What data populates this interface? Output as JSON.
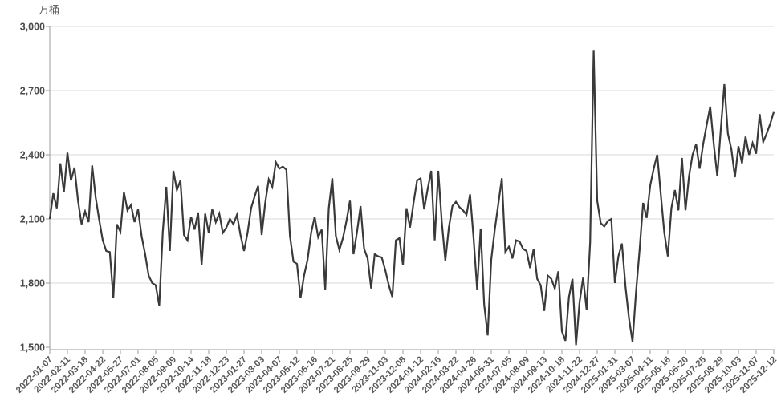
{
  "y_axis_title": "万桶",
  "colors": {
    "line": "#3a3a3a",
    "grid": "#d9d9d9",
    "axis": "#9b9b9b",
    "y_label": "#4a4a4a",
    "x_label": "#595959",
    "background": "#ffffff"
  },
  "chart_data": {
    "type": "line",
    "title": "",
    "xlabel": "",
    "ylabel": "万桶",
    "ylim": [
      1500,
      3000
    ],
    "grid": true,
    "legend_position": "none",
    "y_tick_values": [
      3000,
      2700,
      2400,
      2100,
      1800,
      1500
    ],
    "y_tick_labels": [
      "3,000",
      "2,700",
      "2,400",
      "2,100",
      "1,800",
      "1,500"
    ],
    "x_interval": "weekly",
    "x_tick_every": 5,
    "x_tick_labels": [
      "2022-01-07",
      "2022-02-11",
      "2022-03-18",
      "2022-04-22",
      "2022-05-27",
      "2022-07-01",
      "2022-08-05",
      "2022-09-09",
      "2022-10-14",
      "2022-11-18",
      "2022-12-23",
      "2023-01-27",
      "2023-03-03",
      "2023-04-07",
      "2023-05-12",
      "2023-06-16",
      "2023-07-21",
      "2023-08-25",
      "2023-09-29",
      "2023-11-03",
      "2023-12-08",
      "2024-01-12",
      "2024-02-16",
      "2024-03-22",
      "2024-04-26",
      "2024-05-31",
      "2024-07-05",
      "2024-08-09",
      "2024-09-13",
      "2024-10-18",
      "2024-11-22",
      "2024-12-27",
      "2025-01-31",
      "2025-03-07",
      "2025-04-11",
      "2025-05-16",
      "2025-06-20",
      "2025-07-25",
      "2025-08-29",
      "2025-10-03",
      "2025-11-07",
      "2025-12-12"
    ],
    "series": [
      {
        "name": "",
        "values": [
          2100,
          2220,
          2150,
          2360,
          2225,
          2410,
          2280,
          2340,
          2185,
          2075,
          2135,
          2085,
          2350,
          2200,
          2095,
          2000,
          1950,
          1945,
          1730,
          2075,
          2040,
          2225,
          2140,
          2165,
          2085,
          2145,
          2020,
          1935,
          1835,
          1800,
          1790,
          1695,
          2040,
          2250,
          1950,
          2325,
          2235,
          2280,
          2025,
          2000,
          2110,
          2050,
          2130,
          1885,
          2125,
          2035,
          2145,
          2085,
          2125,
          2035,
          2060,
          2100,
          2075,
          2120,
          2025,
          1950,
          2035,
          2150,
          2205,
          2255,
          2025,
          2175,
          2285,
          2250,
          2365,
          2335,
          2345,
          2330,
          2020,
          1900,
          1890,
          1730,
          1835,
          1910,
          2035,
          2110,
          2015,
          2050,
          1770,
          2150,
          2290,
          2020,
          1955,
          2010,
          2090,
          2185,
          1935,
          2040,
          2160,
          1960,
          1915,
          1775,
          1935,
          1925,
          1920,
          1860,
          1790,
          1735,
          2000,
          2010,
          1885,
          2150,
          2060,
          2175,
          2280,
          2290,
          2145,
          2240,
          2325,
          2000,
          2325,
          2085,
          1905,
          2060,
          2160,
          2180,
          2155,
          2140,
          2120,
          2215,
          2010,
          1770,
          2055,
          1700,
          1555,
          1910,
          2050,
          2170,
          2290,
          1945,
          1970,
          1915,
          2000,
          1995,
          1960,
          1950,
          1870,
          1960,
          1820,
          1790,
          1670,
          1835,
          1820,
          1775,
          1855,
          1575,
          1530,
          1735,
          1820,
          1510,
          1710,
          1825,
          1675,
          1990,
          2890,
          2185,
          2080,
          2065,
          2090,
          2100,
          1800,
          1925,
          1985,
          1785,
          1635,
          1525,
          1760,
          1955,
          2175,
          2105,
          2255,
          2335,
          2400,
          2215,
          2035,
          1925,
          2150,
          2235,
          2140,
          2385,
          2140,
          2300,
          2400,
          2450,
          2335,
          2450,
          2540,
          2625,
          2450,
          2300,
          2520,
          2730,
          2500,
          2425,
          2295,
          2440,
          2360,
          2485,
          2400,
          2455,
          2405,
          2590,
          2460,
          2500,
          2545,
          2600
        ]
      }
    ]
  }
}
